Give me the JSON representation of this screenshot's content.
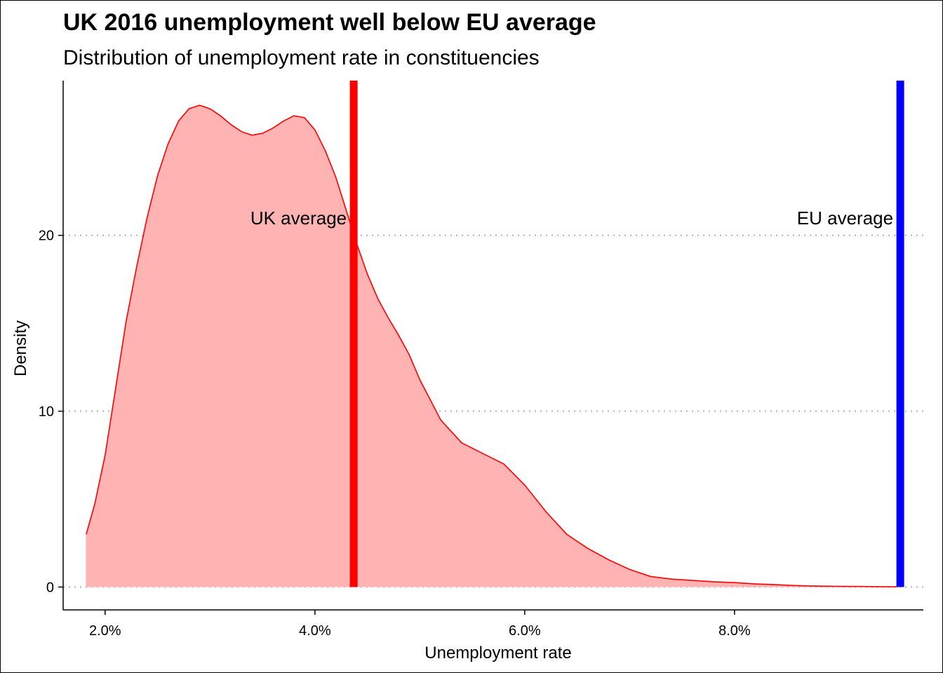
{
  "chart_data": {
    "type": "area",
    "title": "UK 2016 unemployment well below EU average",
    "subtitle": "Distribution of unemployment rate in constituencies",
    "xlabel": "Unemployment rate",
    "ylabel": "Density",
    "xlim": [
      1.6,
      9.8
    ],
    "ylim": [
      -1.3,
      28.8
    ],
    "x_ticks": [
      2.0,
      4.0,
      6.0,
      8.0
    ],
    "x_tick_labels": [
      "2.0%",
      "4.0%",
      "6.0%",
      "8.0%"
    ],
    "y_ticks": [
      0,
      10,
      20
    ],
    "y_tick_labels": [
      "0",
      "10",
      "20"
    ],
    "grid": "horizontal dotted",
    "fill_color": "#ffb3b3",
    "line_color": "#ff0000",
    "density": {
      "x": [
        1.82,
        1.9,
        2.0,
        2.1,
        2.2,
        2.3,
        2.4,
        2.5,
        2.6,
        2.7,
        2.8,
        2.9,
        3.0,
        3.1,
        3.2,
        3.3,
        3.4,
        3.5,
        3.6,
        3.7,
        3.8,
        3.9,
        4.0,
        4.1,
        4.2,
        4.3,
        4.4,
        4.5,
        4.6,
        4.7,
        4.8,
        4.9,
        5.0,
        5.2,
        5.4,
        5.6,
        5.8,
        6.0,
        6.2,
        6.4,
        6.6,
        6.8,
        7.0,
        7.2,
        7.4,
        7.6,
        7.8,
        8.0,
        8.2,
        8.4,
        8.6,
        8.8,
        9.0,
        9.2,
        9.4,
        9.55
      ],
      "y": [
        3.0,
        4.7,
        7.5,
        11.3,
        15.1,
        18.2,
        21.0,
        23.4,
        25.2,
        26.5,
        27.2,
        27.4,
        27.2,
        26.8,
        26.3,
        25.9,
        25.7,
        25.8,
        26.1,
        26.5,
        26.8,
        26.7,
        26.0,
        24.8,
        23.3,
        21.4,
        19.5,
        17.8,
        16.4,
        15.3,
        14.3,
        13.2,
        11.8,
        9.5,
        8.2,
        7.6,
        7.0,
        5.8,
        4.3,
        3.0,
        2.2,
        1.55,
        1.0,
        0.6,
        0.45,
        0.38,
        0.3,
        0.25,
        0.18,
        0.13,
        0.08,
        0.05,
        0.04,
        0.03,
        0.02,
        0.02
      ],
      "clip_y": [
        3.0,
        4.7,
        7.5,
        11.3,
        15.1,
        18.2,
        21.0,
        23.4,
        25.2,
        26.5,
        27.2,
        27.4,
        27.2,
        26.8,
        26.3,
        25.9,
        25.7,
        25.8,
        26.1,
        26.5,
        26.8,
        26.7,
        26.0,
        24.8,
        23.3,
        21.4,
        19.5,
        17.8,
        16.4,
        15.3,
        14.3,
        13.2,
        11.8,
        9.5,
        8.2,
        7.6,
        7.0,
        5.8,
        4.3,
        3.0,
        2.2,
        1.55,
        1.0,
        0.6,
        0.45,
        0.38,
        0.3,
        0.25,
        0.18,
        0.13,
        0.08,
        0.05,
        0.04,
        0.03,
        0.02,
        0.02
      ]
    },
    "reference_lines": [
      {
        "label": "UK average",
        "x": 4.37,
        "color": "#ff0000"
      },
      {
        "label": "EU average",
        "x": 9.58,
        "color": "#0000ff"
      }
    ]
  }
}
